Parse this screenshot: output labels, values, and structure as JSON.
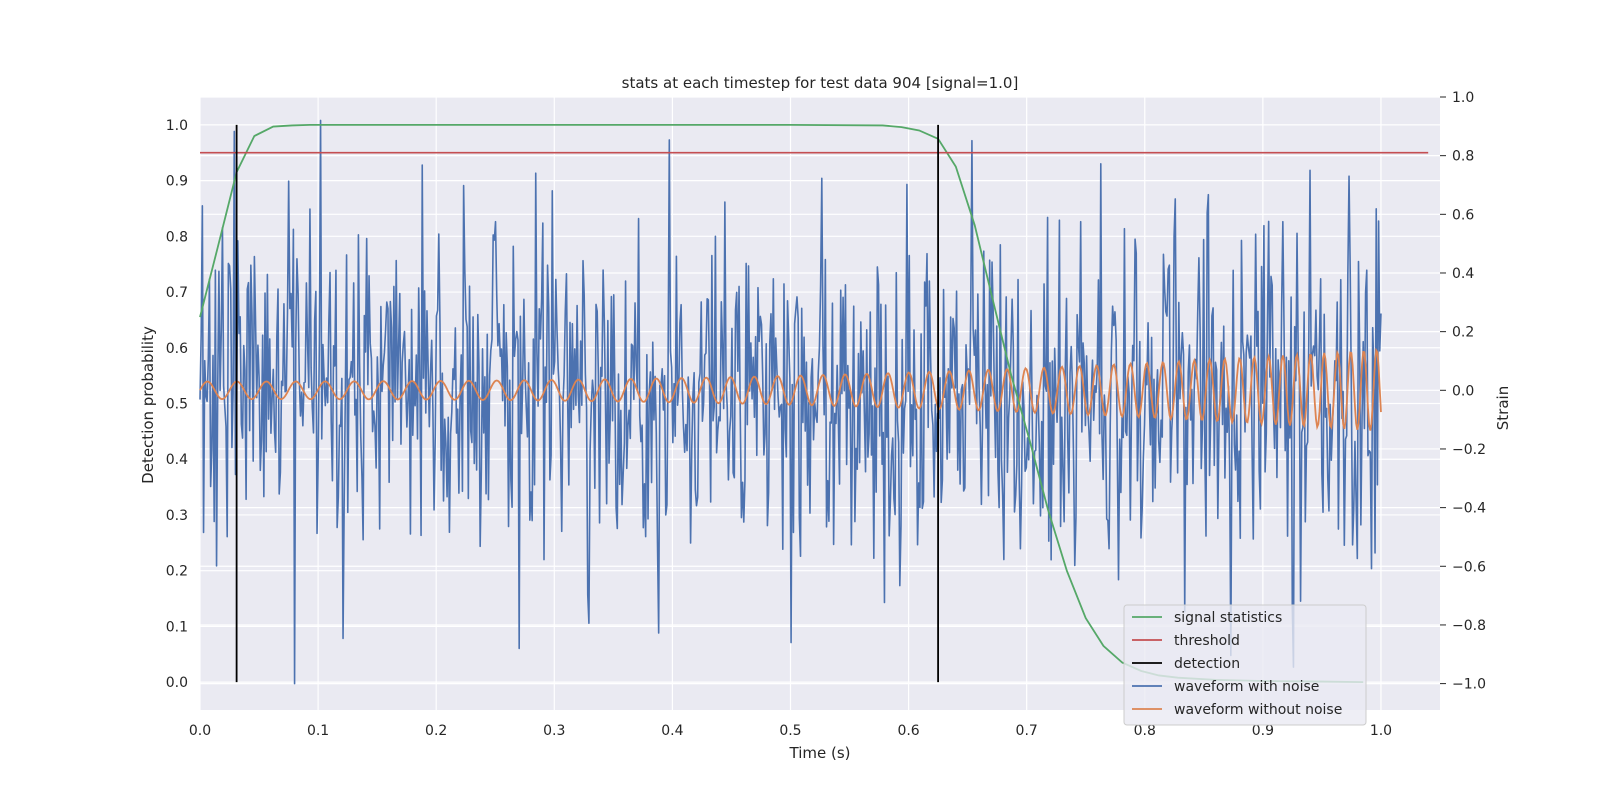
{
  "chart_data": {
    "type": "line",
    "title": "stats at each timestep for test data 904 [signal=1.0]",
    "xlabel": "Time (s)",
    "ylabel": "Detection probability",
    "y2label": "Strain",
    "xlim": [
      0.0,
      1.05
    ],
    "ylim": [
      -0.05,
      1.05
    ],
    "y2lim": [
      -1.09,
      1.0
    ],
    "xticks": [
      "0.0",
      "0.1",
      "0.2",
      "0.3",
      "0.4",
      "0.5",
      "0.6",
      "0.7",
      "0.8",
      "0.9",
      "1.0"
    ],
    "yticks": [
      "0.0",
      "0.1",
      "0.2",
      "0.3",
      "0.4",
      "0.5",
      "0.6",
      "0.7",
      "0.8",
      "0.9",
      "1.0"
    ],
    "y2ticks": [
      "−1.0",
      "−0.8",
      "−0.6",
      "−0.4",
      "−0.2",
      "0.0",
      "0.2",
      "0.4",
      "0.6",
      "0.8",
      "1.0"
    ],
    "grid": true,
    "legend_position": "lower-right",
    "colors": {
      "background": "#eaeaf2",
      "grid": "#ffffff",
      "signal_statistics": "#55a868",
      "threshold": "#c44e52",
      "detection": "#000000",
      "waveform_with_noise": "#4c72b0",
      "waveform_without_noise": "#dd8452"
    },
    "series": [
      {
        "name": "signal statistics",
        "axis": "left",
        "x": [
          0.0,
          0.015,
          0.031,
          0.046,
          0.062,
          0.078,
          0.093,
          0.2,
          0.4,
          0.5,
          0.578,
          0.594,
          0.609,
          0.625,
          0.64,
          0.656,
          0.672,
          0.687,
          0.703,
          0.718,
          0.734,
          0.75,
          0.765,
          0.781,
          0.797,
          0.812,
          0.828,
          0.86,
          0.9,
          0.95,
          0.985
        ],
        "y": [
          0.655,
          0.78,
          0.915,
          0.98,
          0.997,
          0.999,
          1.0,
          1.0,
          1.0,
          1.0,
          0.999,
          0.996,
          0.99,
          0.975,
          0.925,
          0.82,
          0.68,
          0.55,
          0.43,
          0.31,
          0.2,
          0.115,
          0.065,
          0.035,
          0.02,
          0.012,
          0.008,
          0.004,
          0.002,
          0.001,
          0.0
        ]
      },
      {
        "name": "threshold",
        "axis": "left",
        "x": [
          0.0,
          1.04
        ],
        "y": [
          0.95,
          0.95
        ]
      },
      {
        "name": "detection",
        "axis": "left",
        "segments": [
          {
            "x": 0.031,
            "y": [
              0.0,
              1.0
            ]
          },
          {
            "x": 0.625,
            "y": [
              0.0,
              1.0
            ]
          }
        ]
      },
      {
        "name": "waveform with noise",
        "axis": "right",
        "x_range": [
          0.0,
          1.0
        ],
        "points": 1000,
        "noise_sd": 0.28,
        "y_min": -1.0,
        "y_max": 0.92,
        "peaks": [
          {
            "x": 0.08,
            "y": -1.0
          },
          {
            "x": 0.102,
            "y": 0.92
          },
          {
            "x": 0.27,
            "y": -0.88
          },
          {
            "x": 0.5,
            "y": -0.86
          },
          {
            "x": 0.94,
            "y": 0.75
          },
          {
            "x": 0.298,
            "y": 0.68
          }
        ]
      },
      {
        "name": "waveform without noise",
        "axis": "right",
        "x_range": [
          0.0,
          1.0
        ],
        "amplitude_start": 0.03,
        "amplitude_end": 0.14,
        "frequency_start_hz": 40,
        "frequency_end_hz": 93
      }
    ],
    "legend": [
      "signal statistics",
      "threshold",
      "detection",
      "waveform with noise",
      "waveform without noise"
    ]
  }
}
